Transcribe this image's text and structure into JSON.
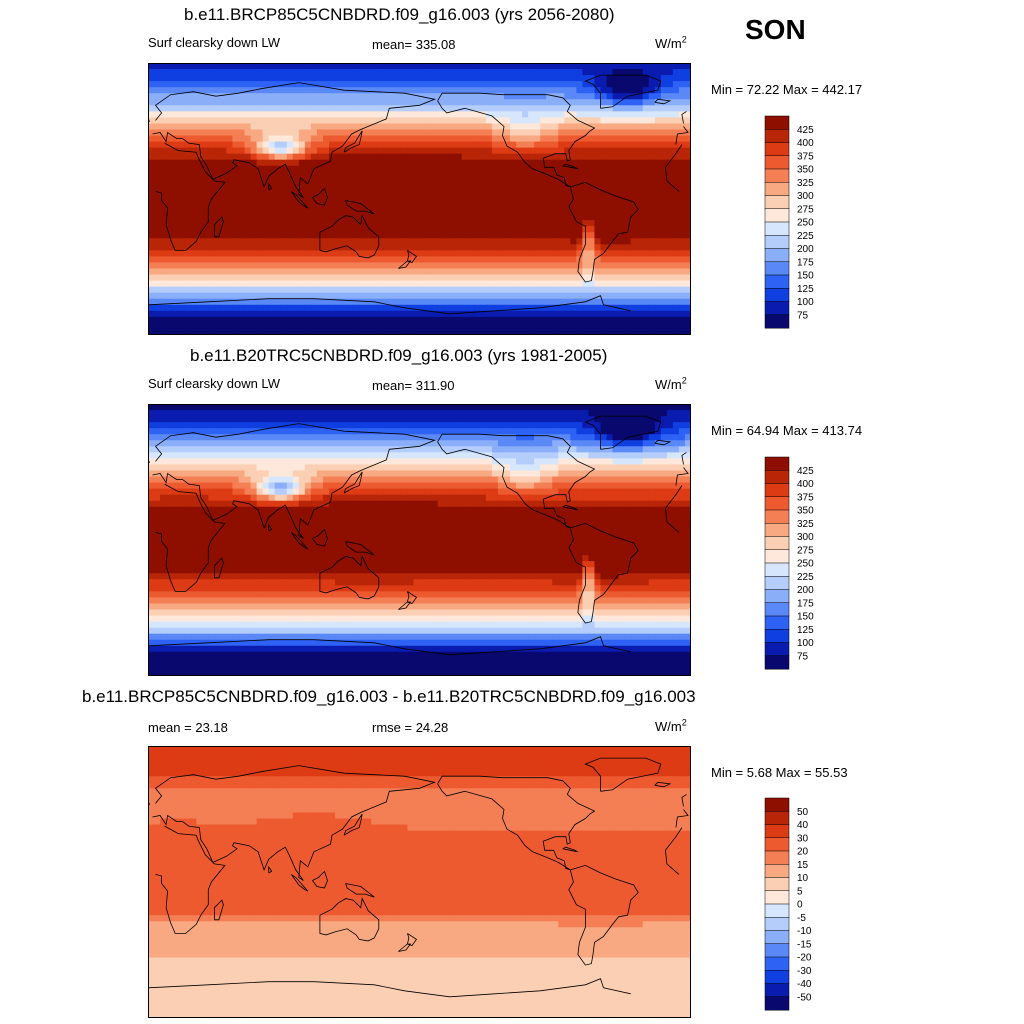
{
  "season": "SON",
  "colors": {
    "abs": [
      "#08086e",
      "#0a1cb0",
      "#0f3fe0",
      "#2e62f4",
      "#5a88f6",
      "#8aaef8",
      "#b4cdfa",
      "#d6e6fc",
      "#fde8db",
      "#fbcfb3",
      "#f8a981",
      "#f47f55",
      "#ee5a30",
      "#dd3b14",
      "#b82507",
      "#8e0f00"
    ],
    "diff": [
      "#08086e",
      "#0a1cb0",
      "#0f3fe0",
      "#2e62f4",
      "#5a88f6",
      "#8aaef8",
      "#b4cdfa",
      "#d6e6fc",
      "#fde8db",
      "#fbcfb3",
      "#f8a981",
      "#f47f55",
      "#ee5a30",
      "#dd3b14",
      "#b82507",
      "#8e0f00"
    ]
  },
  "panels": [
    {
      "title": "b.e11.BRCP85C5CNBDRD.f09_g16.003 (yrs 2056-2080)",
      "left_label": "Surf clearsky down LW",
      "center_label": "mean= 335.08",
      "units": "W/m",
      "units_sup": "2",
      "minmax": "Min =  72.22 Max = 442.17",
      "colorbar_labels": [
        "425",
        "400",
        "375",
        "350",
        "325",
        "300",
        "275",
        "250",
        "225",
        "200",
        "175",
        "150",
        "125",
        "100",
        "75"
      ],
      "colorbar_type": "abs",
      "field": "future"
    },
    {
      "title": "b.e11.B20TRC5CNBDRD.f09_g16.003 (yrs 1981-2005)",
      "left_label": "Surf clearsky down LW",
      "center_label": "mean= 311.90",
      "units": "W/m",
      "units_sup": "2",
      "minmax": "Min =  64.94 Max = 413.74",
      "colorbar_labels": [
        "425",
        "400",
        "375",
        "350",
        "325",
        "300",
        "275",
        "250",
        "225",
        "200",
        "175",
        "150",
        "125",
        "100",
        "75"
      ],
      "colorbar_type": "abs",
      "field": "hist"
    },
    {
      "title": "b.e11.BRCP85C5CNBDRD.f09_g16.003 - b.e11.B20TRC5CNBDRD.f09_g16.003",
      "left_label": "mean =  23.18",
      "center_label": "rmse =  24.28",
      "units": "W/m",
      "units_sup": "2",
      "minmax": "Min =   5.68 Max =  55.53",
      "colorbar_labels": [
        "50",
        "40",
        "30",
        "20",
        "15",
        "10",
        "5",
        "0",
        "-5",
        "-10",
        "-15",
        "-20",
        "-30",
        "-40",
        "-50"
      ],
      "colorbar_type": "diff",
      "field": "diff"
    }
  ]
}
